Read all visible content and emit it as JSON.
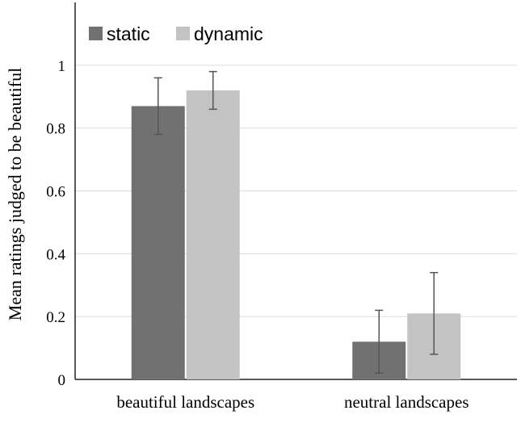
{
  "chart_data": {
    "type": "bar",
    "title": "",
    "xlabel": "",
    "ylabel": "Mean ratings judged to be beautiful",
    "ylim": [
      0,
      1.2
    ],
    "yticks": [
      "0",
      "0.2",
      "0.4",
      "0.6",
      "0.8",
      "1"
    ],
    "grid": true,
    "legend_position": "top-left",
    "categories": [
      "beautiful landscapes",
      "neutral landscapes"
    ],
    "series": [
      {
        "name": "static",
        "color": "#717171",
        "values": [
          0.87,
          0.12
        ],
        "errors": [
          0.09,
          0.1
        ]
      },
      {
        "name": "dynamic",
        "color": "#c3c3c3",
        "values": [
          0.92,
          0.21
        ],
        "errors": [
          0.06,
          0.13
        ]
      }
    ]
  }
}
